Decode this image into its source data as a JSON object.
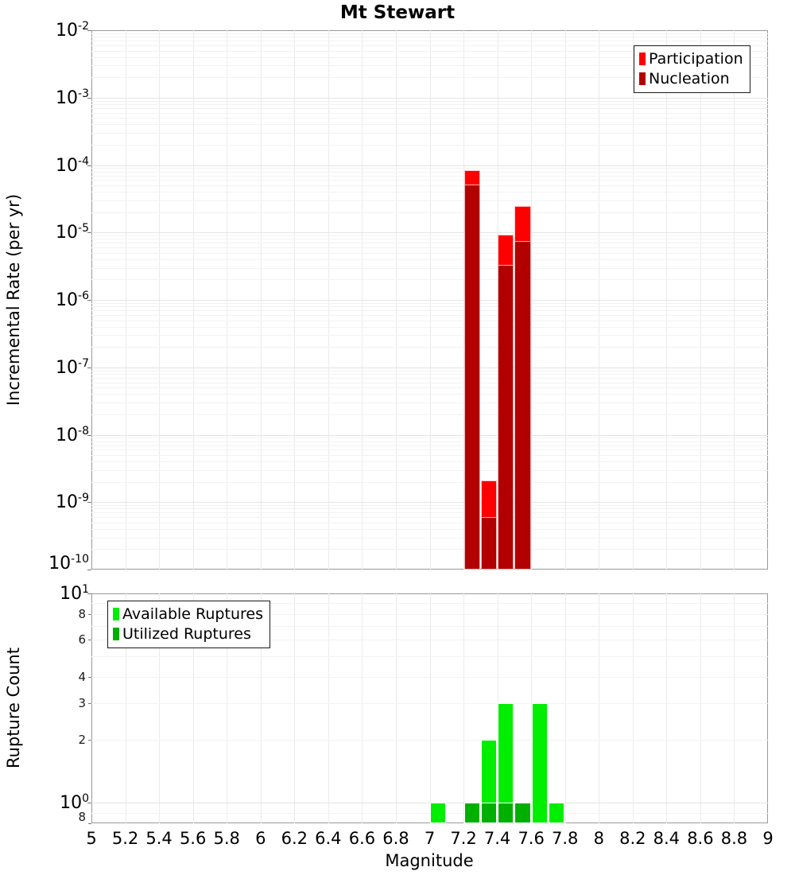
{
  "title": "Mt Stewart",
  "axes": {
    "x": {
      "label": "Magnitude",
      "min": 5,
      "max": 9,
      "tick_step": 0.2,
      "tick_labels": [
        "5",
        "5.2",
        "5.4",
        "5.6",
        "5.8",
        "6",
        "6.2",
        "6.4",
        "6.6",
        "6.8",
        "7",
        "7.2",
        "7.4",
        "7.6",
        "7.8",
        "8",
        "8.2",
        "8.4",
        "8.6",
        "8.8",
        "9"
      ]
    },
    "rate_y": {
      "label": "Incremental Rate (per yr)",
      "scale": "log",
      "min": 1e-10,
      "max": 0.01,
      "tick_base": "10",
      "tick_exponents": [
        "-2",
        "-3",
        "-4",
        "-5",
        "-6",
        "-7",
        "-8",
        "-9",
        "-10"
      ]
    },
    "count_y": {
      "label": "Rupture Count",
      "scale": "log",
      "min": 0.8,
      "max": 10,
      "tick_base": "10",
      "major_ticks": [
        {
          "exp": "1",
          "value": 10
        },
        {
          "exp": "0",
          "value": 1
        }
      ],
      "minor_ticks": [
        {
          "label": "8",
          "value": 8
        },
        {
          "label": "6",
          "value": 6
        },
        {
          "label": "4",
          "value": 4
        },
        {
          "label": "3",
          "value": 3
        },
        {
          "label": "2",
          "value": 2
        },
        {
          "label": "8",
          "value": 0.8
        }
      ]
    }
  },
  "chart_data": [
    {
      "type": "bar",
      "name": "incremental-rate-histogram",
      "title": "Mt Stewart",
      "xlabel": "Magnitude",
      "ylabel": "Incremental Rate (per yr)",
      "yscale": "log",
      "ylim": [
        1e-10,
        0.01
      ],
      "xlim": [
        5,
        9
      ],
      "bin_width": 0.1,
      "legend_position": "top-right",
      "grid": true,
      "series": [
        {
          "name": "Participation",
          "color": "#ff0000",
          "edge": "#ffc2c2",
          "bins": [
            {
              "x": 7.2,
              "y": 8.3e-05
            },
            {
              "x": 7.3,
              "y": 2.1e-09
            },
            {
              "x": 7.4,
              "y": 9.3e-06
            },
            {
              "x": 7.5,
              "y": 2.5e-05
            }
          ]
        },
        {
          "name": "Nucleation",
          "color": "#b20000",
          "edge": "#eab4b4",
          "bins": [
            {
              "x": 7.2,
              "y": 5.2e-05
            },
            {
              "x": 7.3,
              "y": 6e-10
            },
            {
              "x": 7.4,
              "y": 3.3e-06
            },
            {
              "x": 7.5,
              "y": 7.5e-06
            }
          ]
        }
      ]
    },
    {
      "type": "bar",
      "name": "rupture-count-histogram",
      "xlabel": "Magnitude",
      "ylabel": "Rupture Count",
      "yscale": "log",
      "ylim": [
        0.8,
        10
      ],
      "xlim": [
        5,
        9
      ],
      "bin_width": 0.1,
      "legend_position": "top-left",
      "grid": true,
      "series": [
        {
          "name": "Available Ruptures",
          "color": "#00ee00",
          "edge": "#ffffff",
          "bins": [
            {
              "x": 7.0,
              "y": 1
            },
            {
              "x": 7.2,
              "y": 1
            },
            {
              "x": 7.3,
              "y": 2
            },
            {
              "x": 7.4,
              "y": 3
            },
            {
              "x": 7.5,
              "y": 1
            },
            {
              "x": 7.6,
              "y": 3
            },
            {
              "x": 7.7,
              "y": 1
            }
          ]
        },
        {
          "name": "Utilized Ruptures",
          "color": "#00b000",
          "edge": "#ffffff",
          "bins": [
            {
              "x": 7.2,
              "y": 1
            },
            {
              "x": 7.3,
              "y": 1
            },
            {
              "x": 7.4,
              "y": 1
            },
            {
              "x": 7.5,
              "y": 1
            }
          ]
        }
      ]
    }
  ],
  "colors": {
    "participation": "#ff0000",
    "nucleation": "#b20000",
    "available": "#00ee00",
    "utilized": "#00b000",
    "grid_minor": "#f2f2f2",
    "grid_major": "#e4e4e4",
    "grid_vertical": "#ebebeb",
    "panel_border": "#999999"
  }
}
